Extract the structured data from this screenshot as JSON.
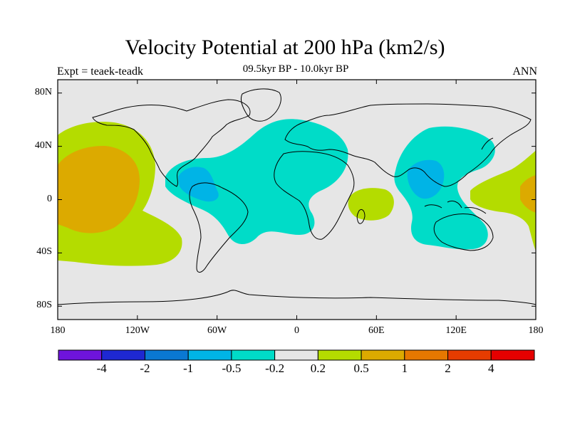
{
  "title": "Velocity Potential at 200 hPa (km2/s)",
  "subtitle": "09.5kyr BP - 10.0kyr BP",
  "left_label": "Expt = teaek-teadk",
  "right_label": "ANN",
  "colors": {
    "ocean_bg": "#e6e6e6",
    "coast": "#000000"
  },
  "chart_data": {
    "type": "heatmap",
    "xlim": [
      -180,
      180
    ],
    "ylim": [
      -90,
      90
    ],
    "x_ticks": [
      "180",
      "120W",
      "60W",
      "0",
      "60E",
      "120E",
      "180"
    ],
    "x_tick_values": [
      -180,
      -120,
      -60,
      0,
      60,
      120,
      180
    ],
    "y_ticks": [
      "80N",
      "40N",
      "0",
      "40S",
      "80S"
    ],
    "y_tick_values": [
      80,
      40,
      0,
      -40,
      -80
    ],
    "colorbar": {
      "labels": [
        "-4",
        "-2",
        "-1",
        "-0.5",
        "-0.2",
        "0.2",
        "0.5",
        "1",
        "2",
        "4"
      ],
      "levels": [
        -4,
        -2,
        -1,
        -0.5,
        -0.2,
        0.2,
        0.5,
        1,
        2,
        4
      ],
      "colors": [
        "#6e14dc",
        "#1e28d2",
        "#0a78d2",
        "#00b4e6",
        "#00dcc8",
        "#e6e6e6",
        "#b4dc00",
        "#dcaa00",
        "#e67800",
        "#e63c00",
        "#e60000"
      ]
    },
    "regions": [
      {
        "value_range": [
          0.2,
          0.5
        ],
        "lon": -150,
        "lat": 5,
        "desc": "positive anomaly central/east Pacific"
      },
      {
        "value_range": [
          0.5,
          1
        ],
        "lon": -145,
        "lat": 10,
        "desc": "central Pacific max"
      },
      {
        "value_range": [
          -0.5,
          -0.2
        ],
        "lon": -40,
        "lat": 15,
        "desc": "Atlantic/Americas negative"
      },
      {
        "value_range": [
          -1,
          -0.5
        ],
        "lon": -75,
        "lat": 10,
        "desc": "Caribbean min"
      },
      {
        "value_range": [
          0.2,
          0.5
        ],
        "lon": 58,
        "lat": -2,
        "desc": "western Indian Ocean positive"
      },
      {
        "value_range": [
          -0.5,
          -0.2
        ],
        "lon": 100,
        "lat": 15,
        "desc": "Asia/Maritime Continent negative"
      },
      {
        "value_range": [
          -1,
          -0.5
        ],
        "lon": 100,
        "lat": 22,
        "desc": "Southeast Asia min"
      },
      {
        "value_range": [
          0.2,
          0.5
        ],
        "lon": 165,
        "lat": 0,
        "desc": "western Pacific positive"
      },
      {
        "value_range": [
          0.5,
          1
        ],
        "lon": 175,
        "lat": 5,
        "desc": "western Pacific max"
      }
    ]
  }
}
